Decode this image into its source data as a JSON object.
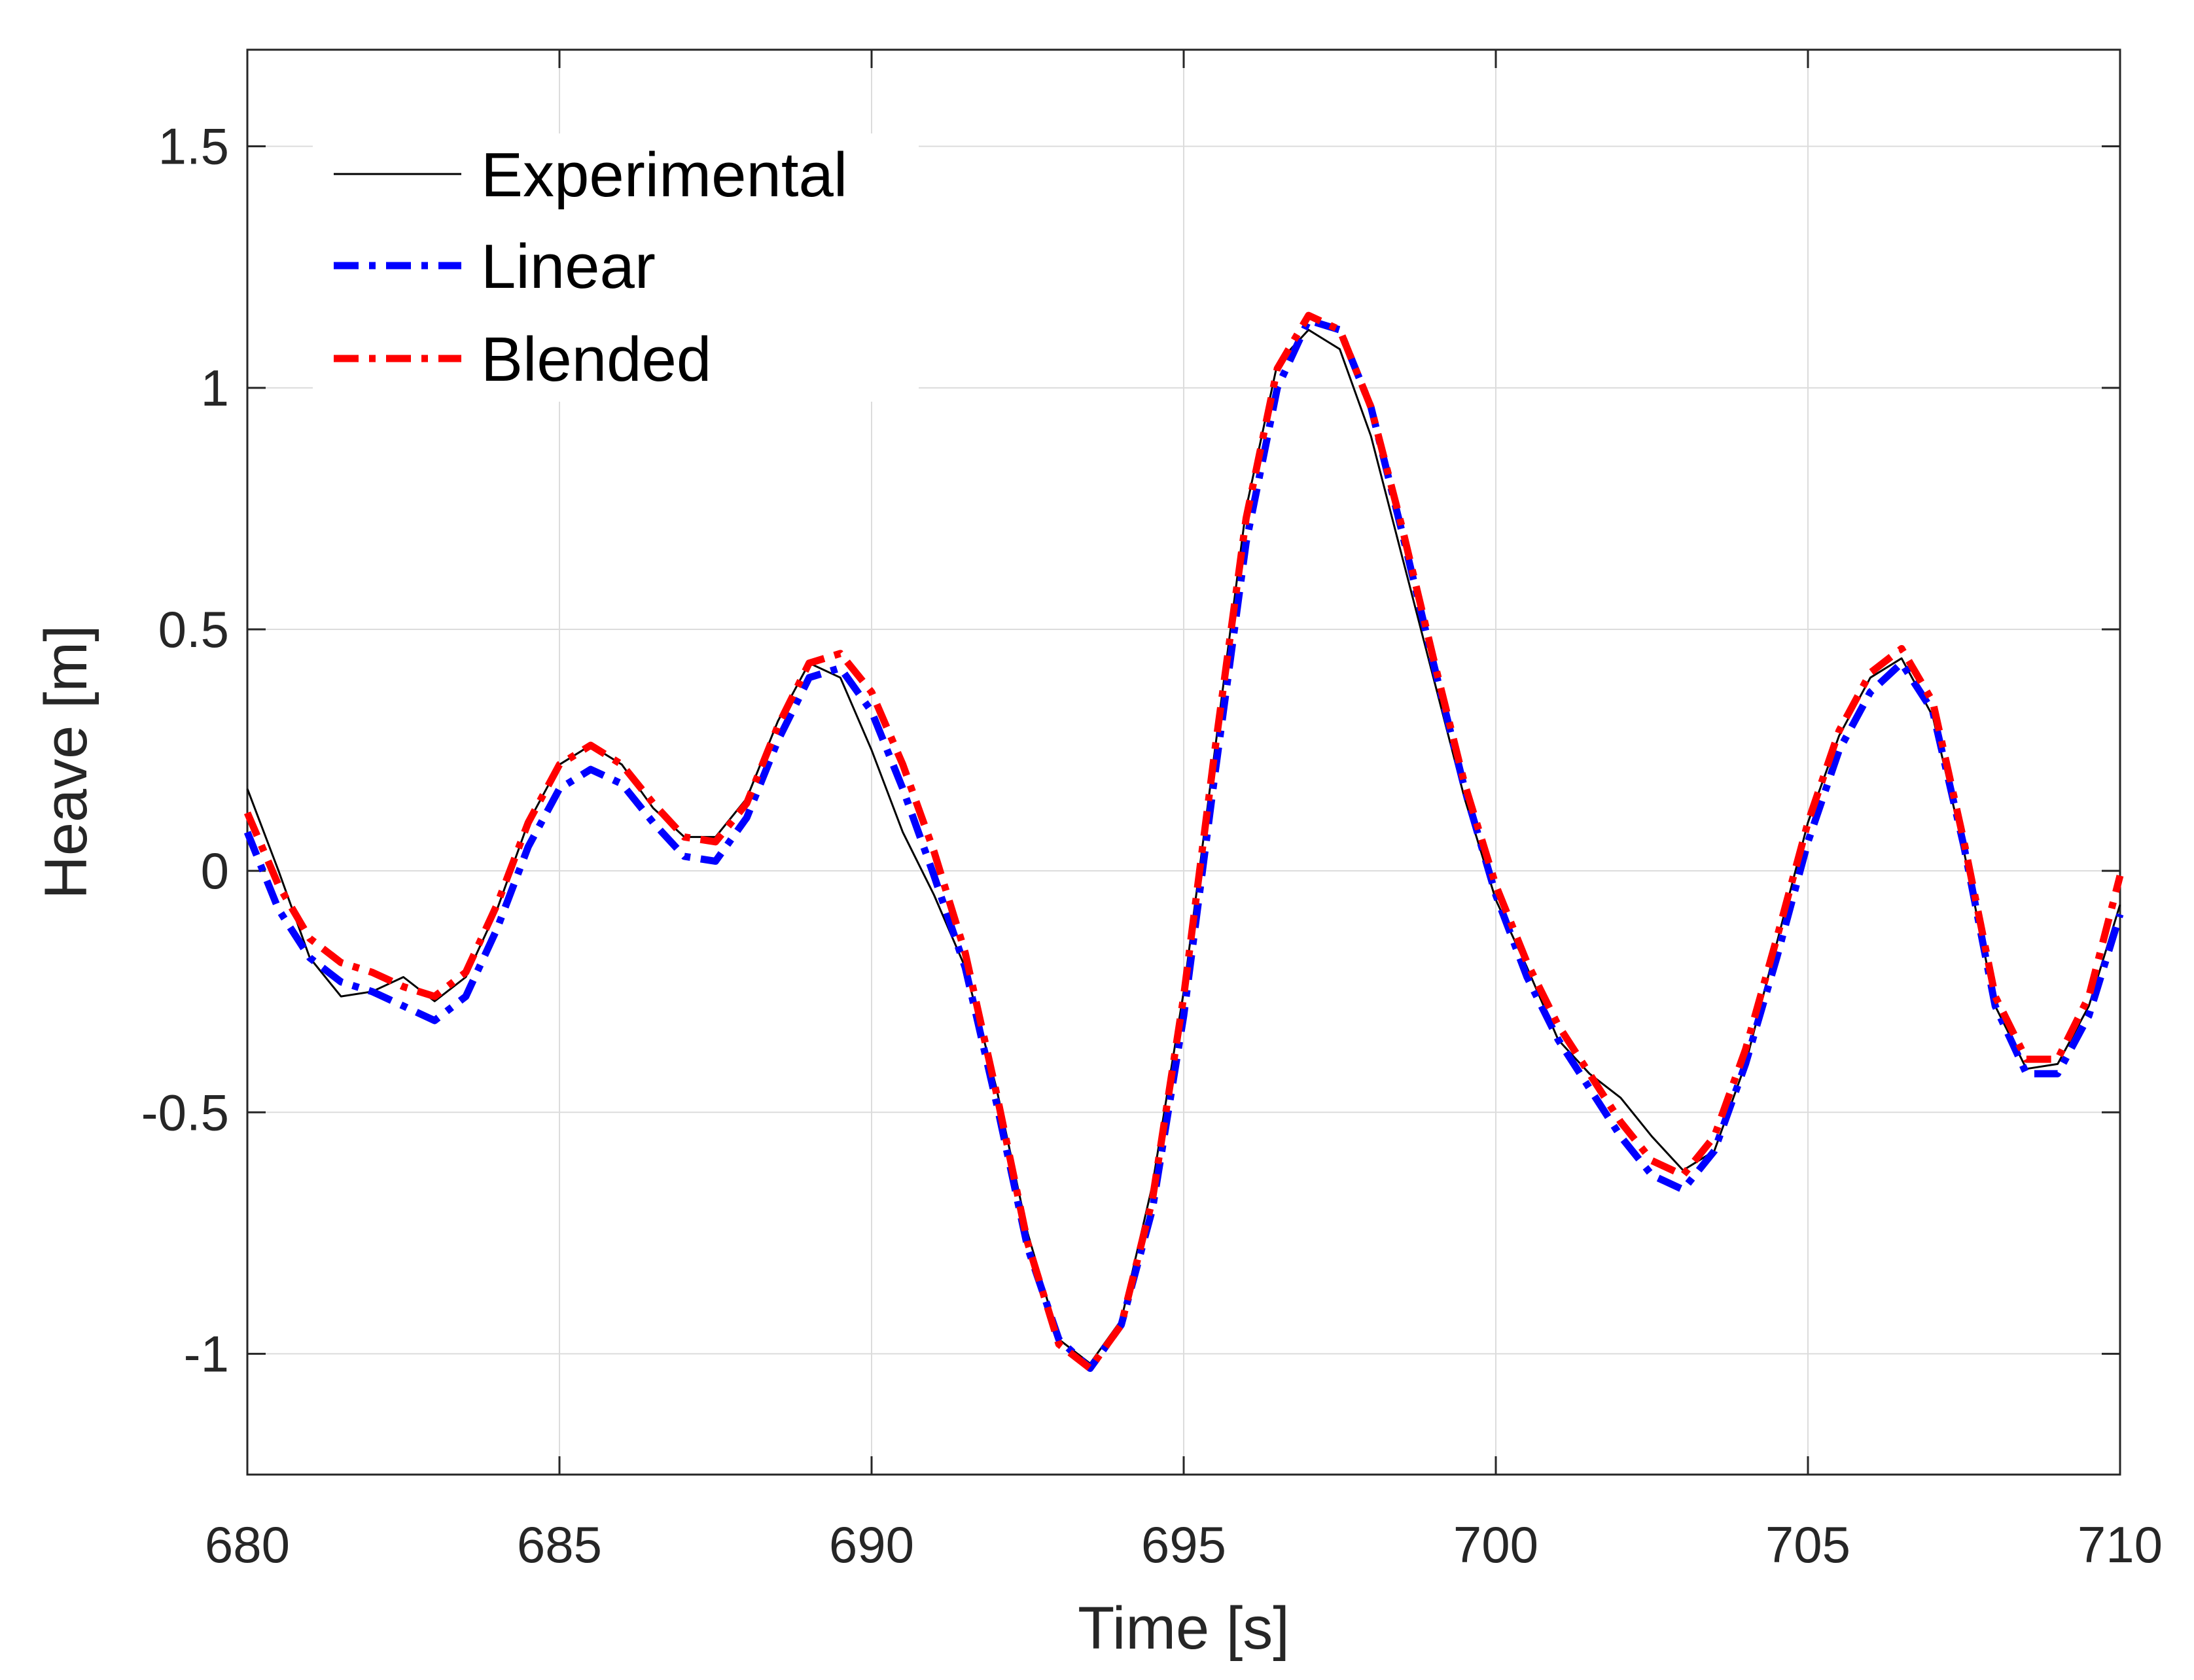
{
  "chart_data": {
    "type": "line",
    "title": "",
    "xlabel": "Time [s]",
    "ylabel": "Heave [m]",
    "xlim": [
      680,
      710
    ],
    "ylim": [
      -1.25,
      1.7
    ],
    "xticks": [
      680,
      685,
      690,
      695,
      700,
      705,
      710
    ],
    "yticks": [
      -1,
      -0.5,
      0,
      0.5,
      1,
      1.5
    ],
    "xtick_labels": [
      "680",
      "685",
      "690",
      "695",
      "700",
      "705",
      "710"
    ],
    "ytick_labels": [
      "-1",
      "-0.5",
      "0",
      "0.5",
      "1",
      "1.5"
    ],
    "grid": true,
    "legend_position": "top-left",
    "series": [
      {
        "name": "Experimental",
        "color": "#000000",
        "style": "solid",
        "x": [
          680,
          680.5,
          681,
          681.5,
          682,
          682.5,
          683,
          683.5,
          684,
          684.5,
          685,
          685.5,
          686,
          686.5,
          687,
          687.5,
          688,
          688.5,
          689,
          689.5,
          690,
          690.5,
          691,
          691.5,
          692,
          692.5,
          693,
          693.5,
          694,
          694.5,
          695,
          695.5,
          696,
          696.5,
          697,
          697.5,
          698,
          698.5,
          699,
          699.5,
          700,
          700.5,
          701,
          701.5,
          702,
          702.5,
          703,
          703.5,
          704,
          704.5,
          705,
          705.5,
          706,
          706.5,
          707,
          707.5,
          708,
          708.5,
          709,
          709.5,
          710
        ],
        "y": [
          0.17,
          0.0,
          -0.18,
          -0.26,
          -0.25,
          -0.22,
          -0.27,
          -0.22,
          -0.08,
          0.1,
          0.22,
          0.26,
          0.22,
          0.13,
          0.07,
          0.07,
          0.15,
          0.31,
          0.43,
          0.4,
          0.25,
          0.08,
          -0.05,
          -0.2,
          -0.45,
          -0.75,
          -0.97,
          -1.02,
          -0.93,
          -0.65,
          -0.25,
          0.25,
          0.75,
          1.05,
          1.12,
          1.08,
          0.9,
          0.65,
          0.4,
          0.15,
          -0.06,
          -0.2,
          -0.35,
          -0.42,
          -0.47,
          -0.55,
          -0.62,
          -0.58,
          -0.4,
          -0.15,
          0.1,
          0.28,
          0.4,
          0.44,
          0.32,
          0.04,
          -0.28,
          -0.41,
          -0.4,
          -0.28,
          -0.07
        ]
      },
      {
        "name": "Linear",
        "color": "#0000ff",
        "style": "dashdot",
        "x": [
          680,
          680.5,
          681,
          681.5,
          682,
          682.5,
          683,
          683.5,
          684,
          684.5,
          685,
          685.5,
          686,
          686.5,
          687,
          687.5,
          688,
          688.5,
          689,
          689.5,
          690,
          690.5,
          691,
          691.5,
          692,
          692.5,
          693,
          693.5,
          694,
          694.5,
          695,
          695.5,
          696,
          696.5,
          697,
          697.5,
          698,
          698.5,
          699,
          699.5,
          700,
          700.5,
          701,
          701.5,
          702,
          702.5,
          703,
          703.5,
          704,
          704.5,
          705,
          705.5,
          706,
          706.5,
          707,
          707.5,
          708,
          708.5,
          709,
          709.5,
          710
        ],
        "y": [
          0.08,
          -0.08,
          -0.18,
          -0.23,
          -0.25,
          -0.28,
          -0.31,
          -0.26,
          -0.12,
          0.05,
          0.17,
          0.21,
          0.18,
          0.1,
          0.03,
          0.02,
          0.11,
          0.27,
          0.4,
          0.42,
          0.33,
          0.17,
          -0.01,
          -0.2,
          -0.48,
          -0.78,
          -0.97,
          -1.03,
          -0.94,
          -0.7,
          -0.3,
          0.2,
          0.68,
          1.0,
          1.14,
          1.12,
          0.96,
          0.7,
          0.43,
          0.17,
          -0.05,
          -0.22,
          -0.35,
          -0.45,
          -0.55,
          -0.63,
          -0.66,
          -0.58,
          -0.4,
          -0.18,
          0.06,
          0.25,
          0.37,
          0.43,
          0.33,
          0.05,
          -0.28,
          -0.42,
          -0.42,
          -0.3,
          -0.09
        ]
      },
      {
        "name": "Blended",
        "color": "#ff0000",
        "style": "dashdot",
        "x": [
          680,
          680.5,
          681,
          681.5,
          682,
          682.5,
          683,
          683.5,
          684,
          684.5,
          685,
          685.5,
          686,
          686.5,
          687,
          687.5,
          688,
          688.5,
          689,
          689.5,
          690,
          690.5,
          691,
          691.5,
          692,
          692.5,
          693,
          693.5,
          694,
          694.5,
          695,
          695.5,
          696,
          696.5,
          697,
          697.5,
          698,
          698.5,
          699,
          699.5,
          700,
          700.5,
          701,
          701.5,
          702,
          702.5,
          703,
          703.5,
          704,
          704.5,
          705,
          705.5,
          706,
          706.5,
          707,
          707.5,
          708,
          708.5,
          709,
          709.5,
          710
        ],
        "y": [
          0.12,
          -0.03,
          -0.14,
          -0.19,
          -0.21,
          -0.24,
          -0.26,
          -0.21,
          -0.07,
          0.1,
          0.22,
          0.26,
          0.22,
          0.14,
          0.07,
          0.06,
          0.14,
          0.3,
          0.43,
          0.45,
          0.37,
          0.22,
          0.04,
          -0.17,
          -0.46,
          -0.77,
          -0.98,
          -1.03,
          -0.94,
          -0.68,
          -0.26,
          0.25,
          0.73,
          1.04,
          1.15,
          1.12,
          0.96,
          0.71,
          0.44,
          0.18,
          -0.03,
          -0.19,
          -0.32,
          -0.42,
          -0.52,
          -0.6,
          -0.63,
          -0.55,
          -0.37,
          -0.14,
          0.1,
          0.29,
          0.41,
          0.46,
          0.35,
          0.06,
          -0.26,
          -0.39,
          -0.39,
          -0.26,
          -0.01
        ]
      }
    ]
  }
}
